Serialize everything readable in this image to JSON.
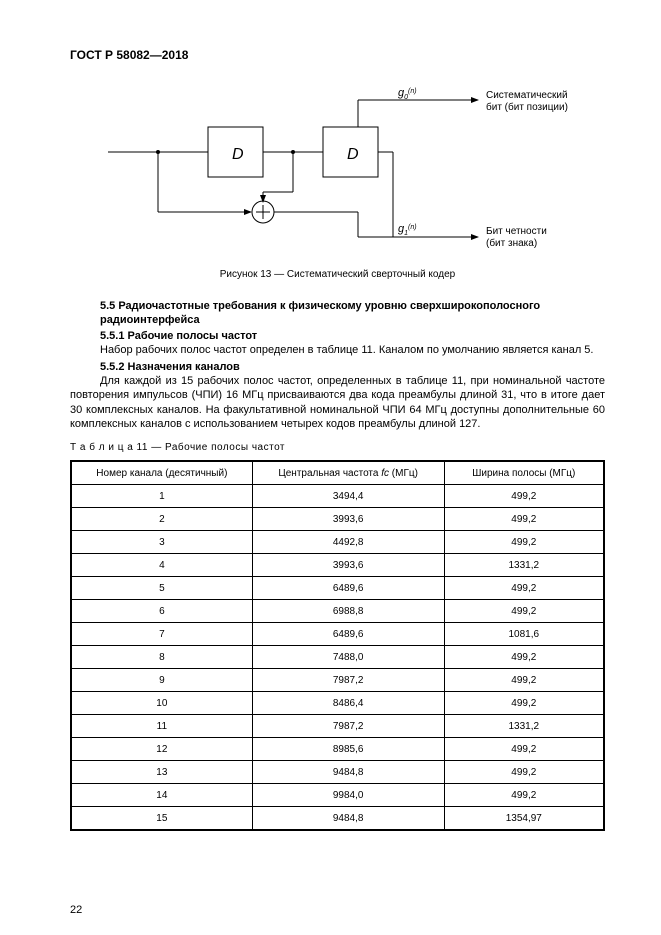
{
  "doc_id": "ГОСТ Р 58082—2018",
  "page_number": "22",
  "diagram": {
    "g0_label": "g",
    "g0_sub": "0",
    "g0_sup": "(n)",
    "g1_label": "g",
    "g1_sub": "1",
    "g1_sup": "(n)",
    "d_label": "D",
    "out_top_l1": "Систематический",
    "out_top_l2": "бит (бит позиции)",
    "out_bot_l1": "Бит четности",
    "out_bot_l2": "(бит знака)",
    "caption": "Рисунок 13 — Систематический сверточный кодер"
  },
  "section_5_5": "5.5 Радиочастотные требования к физическому уровню сверхширокополосного радиоинтерфейса",
  "s_5_5_1": "5.5.1 Рабочие полосы частот",
  "p_5_5_1": "Набор рабочих полос частот определен в таблице 11. Каналом по умолчанию является канал 5.",
  "s_5_5_2": "5.5.2 Назначения каналов",
  "p_5_5_2": "Для каждой из 15 рабочих полос частот, определенных в таблице 11, при номинальной частоте повторения импульсов (ЧПИ) 16 МГц присваиваются два кода преамбулы длиной 31, что в итоге дает 30 комплексных каналов. На факультативной номинальной ЧПИ 64 МГц доступны дополнительные 60 комплексных каналов с использованием четырех кодов преамбулы длиной 127.",
  "table": {
    "caption": "Т а б л и ц а   11 — Рабочие полосы частот",
    "col1": "Номер канала (десятичный)",
    "col2_a": "Центральная частота ",
    "col2_b": "fc",
    "col2_c": " (МГц)",
    "col3": "Ширина полосы (МГц)",
    "rows": [
      [
        "1",
        "3494,4",
        "499,2"
      ],
      [
        "2",
        "3993,6",
        "499,2"
      ],
      [
        "3",
        "4492,8",
        "499,2"
      ],
      [
        "4",
        "3993,6",
        "1331,2"
      ],
      [
        "5",
        "6489,6",
        "499,2"
      ],
      [
        "6",
        "6988,8",
        "499,2"
      ],
      [
        "7",
        "6489,6",
        "1081,6"
      ],
      [
        "8",
        "7488,0",
        "499,2"
      ],
      [
        "9",
        "7987,2",
        "499,2"
      ],
      [
        "10",
        "8486,4",
        "499,2"
      ],
      [
        "11",
        "7987,2",
        "1331,2"
      ],
      [
        "12",
        "8985,6",
        "499,2"
      ],
      [
        "13",
        "9484,8",
        "499,2"
      ],
      [
        "14",
        "9984,0",
        "499,2"
      ],
      [
        "15",
        "9484,8",
        "1354,97"
      ]
    ]
  }
}
